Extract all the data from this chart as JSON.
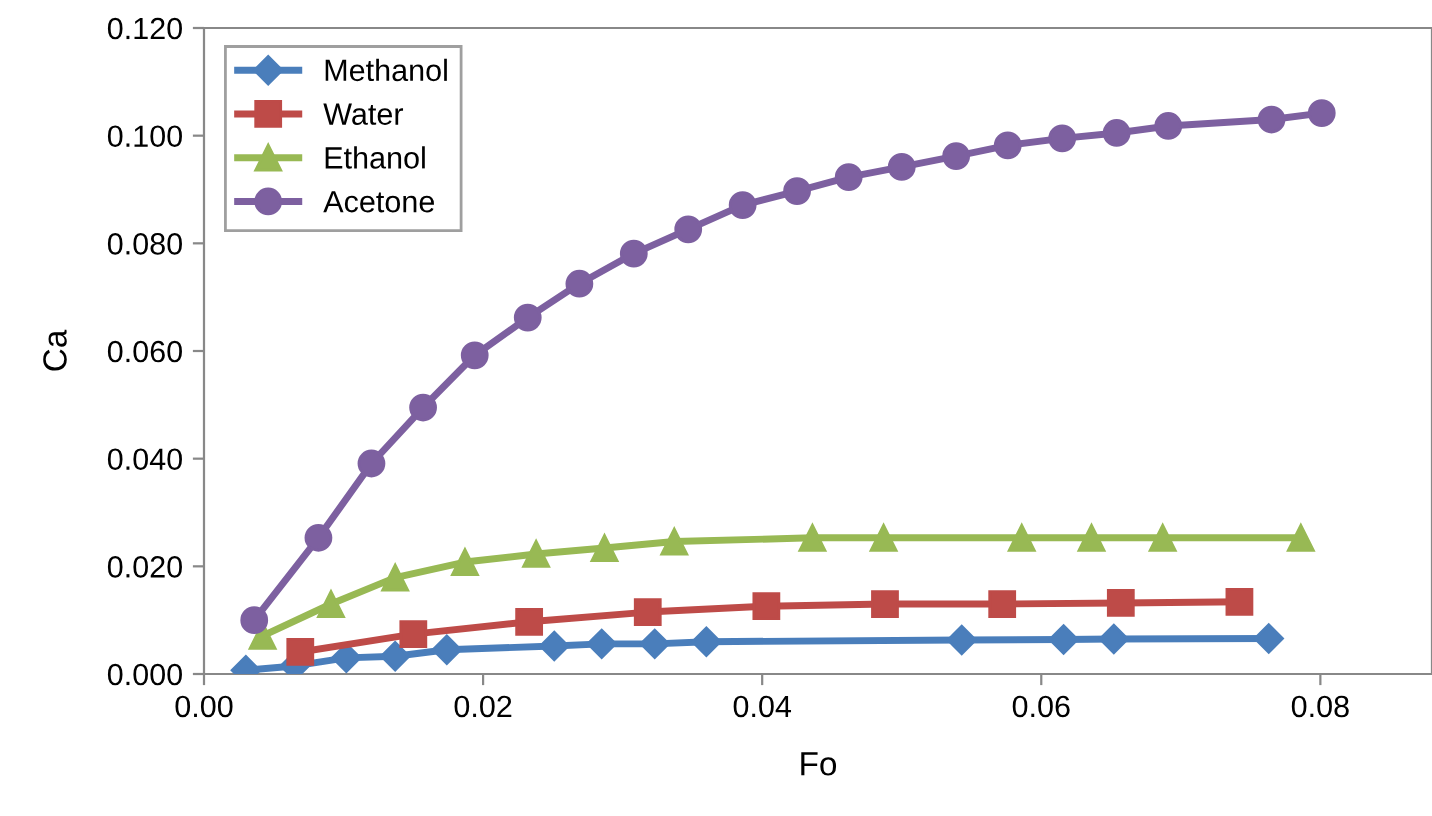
{
  "chart_data": {
    "type": "line",
    "xlabel": "Fo",
    "ylabel": "Ca",
    "xlim": [
      0,
      0.088
    ],
    "ylim": [
      0,
      0.12
    ],
    "xticks": [
      {
        "value": 0,
        "label": "0.00"
      },
      {
        "value": 0.02,
        "label": "0.02"
      },
      {
        "value": 0.04,
        "label": "0.04"
      },
      {
        "value": 0.06,
        "label": "0.06"
      },
      {
        "value": 0.08,
        "label": "0.08"
      }
    ],
    "yticks": [
      {
        "value": 0,
        "label": "0.000"
      },
      {
        "value": 0.02,
        "label": "0.020"
      },
      {
        "value": 0.04,
        "label": "0.040"
      },
      {
        "value": 0.06,
        "label": "0.060"
      },
      {
        "value": 0.08,
        "label": "0.080"
      },
      {
        "value": 0.1,
        "label": "0.100"
      },
      {
        "value": 0.12,
        "label": "0.120"
      }
    ],
    "grid": false,
    "legend": "top left",
    "line_style": "solid",
    "series": [
      {
        "name": "Methanol",
        "color": "#4a7ebb",
        "marker": "diamond",
        "x": [
          0.003,
          0.0065,
          0.0102,
          0.0137,
          0.0174,
          0.0251,
          0.0285,
          0.0323,
          0.036,
          0.0543,
          0.0616,
          0.0652,
          0.0763
        ],
        "values": [
          0.0007,
          0.0015,
          0.003,
          0.0033,
          0.0045,
          0.0052,
          0.0056,
          0.0056,
          0.006,
          0.0063,
          0.0064,
          0.0065,
          0.0066
        ]
      },
      {
        "name": "Water",
        "color": "#be4b48",
        "marker": "square",
        "x": [
          0.0069,
          0.015,
          0.0233,
          0.0318,
          0.0403,
          0.0488,
          0.0572,
          0.0657,
          0.0742
        ],
        "values": [
          0.0041,
          0.0074,
          0.0097,
          0.0115,
          0.0126,
          0.013,
          0.013,
          0.0132,
          0.0134
        ]
      },
      {
        "name": "Ethanol",
        "color": "#98b954",
        "marker": "triangle",
        "x": [
          0.0042,
          0.0091,
          0.0137,
          0.0187,
          0.0238,
          0.0287,
          0.0337,
          0.0436,
          0.0487,
          0.0586,
          0.0636,
          0.0687,
          0.0786
        ],
        "values": [
          0.0071,
          0.013,
          0.0179,
          0.0208,
          0.0223,
          0.0234,
          0.0246,
          0.0253,
          0.0253,
          0.0253,
          0.0253,
          0.0253,
          0.0253
        ]
      },
      {
        "name": "Acetone",
        "color": "#7d60a0",
        "marker": "circle",
        "x": [
          0.0036,
          0.0082,
          0.012,
          0.0157,
          0.0194,
          0.0232,
          0.0269,
          0.0308,
          0.0347,
          0.0386,
          0.0425,
          0.0462,
          0.05,
          0.0539,
          0.0576,
          0.0615,
          0.0654,
          0.0691,
          0.0765,
          0.0801
        ],
        "values": [
          0.01,
          0.0253,
          0.0391,
          0.0495,
          0.0592,
          0.0662,
          0.0725,
          0.0781,
          0.0826,
          0.0871,
          0.0897,
          0.0923,
          0.0942,
          0.0962,
          0.0982,
          0.0995,
          0.1005,
          0.1018,
          0.103,
          0.1042
        ]
      }
    ]
  }
}
